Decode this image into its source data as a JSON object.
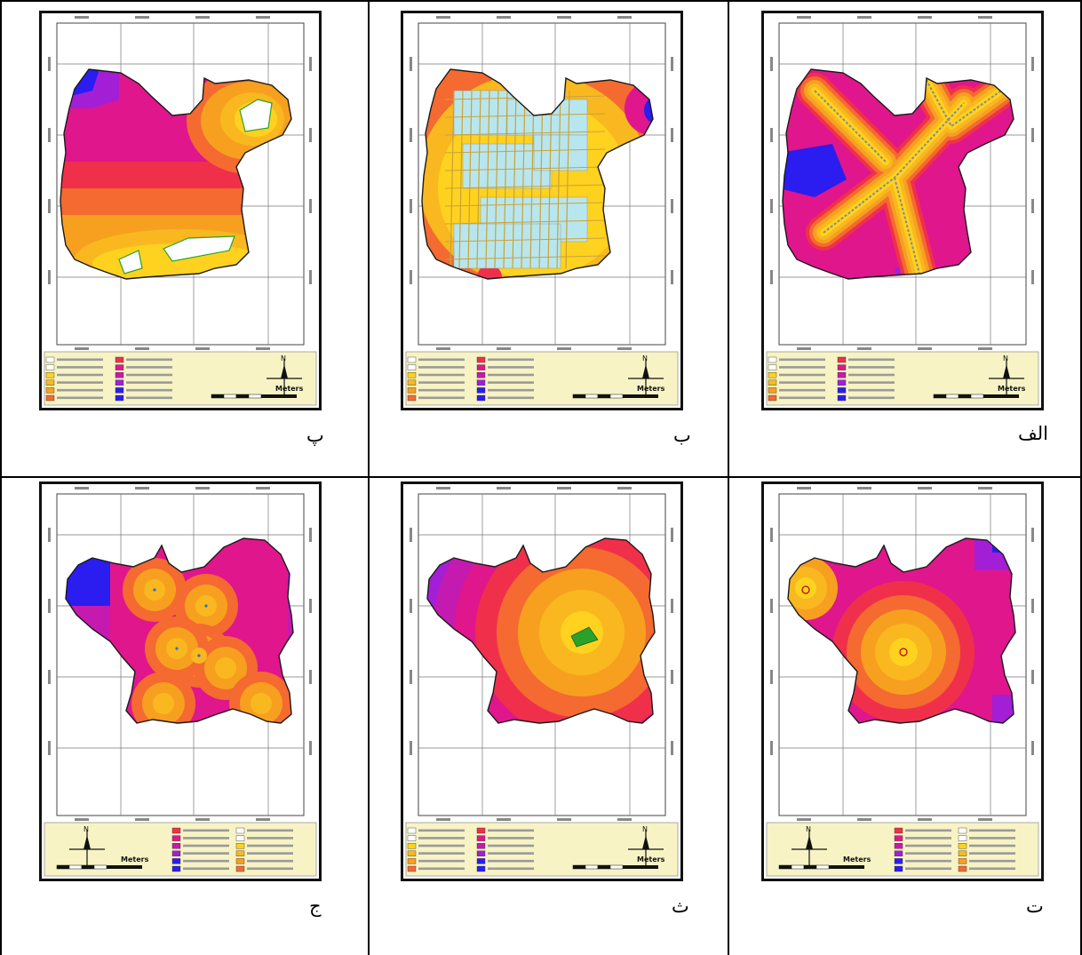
{
  "captions": {
    "a": "الف",
    "b": "ب",
    "p": "پ",
    "t": "ت",
    "s": "ث",
    "j": "ج"
  },
  "scalebar_unit": "Meters",
  "north_label": "N",
  "colors": {
    "yellow": "#ffd21f",
    "orange": "#f7a020",
    "red": "#f0304a",
    "magenta": "#e0168c",
    "purple": "#a21fd6",
    "blue": "#2b1cf0",
    "legend_bg": "#f7f3c4",
    "features_blue": "#b8e6ee",
    "green": "#2aa12a"
  }
}
